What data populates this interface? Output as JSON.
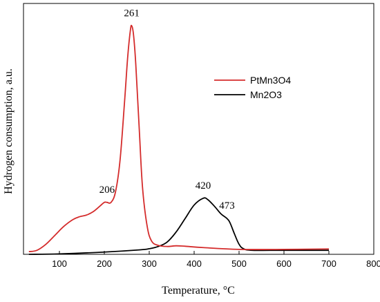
{
  "chart_data": {
    "type": "line",
    "title": "",
    "xlabel": "Temperature, °C",
    "ylabel": "Hydrogen consumption, a.u.",
    "xlim": [
      20,
      800
    ],
    "ylim": [
      0,
      1.12
    ],
    "x_ticks": [
      100,
      200,
      300,
      400,
      500,
      600,
      700,
      800
    ],
    "x_tick_labels": [
      "100",
      "200",
      "300",
      "400",
      "500",
      "600",
      "700",
      "800"
    ],
    "grid": false,
    "legend_position": "top-right",
    "series": [
      {
        "name": "PtMn3O4",
        "color": "#d42b2b",
        "x": [
          32,
          50,
          70,
          90,
          110,
          130,
          145,
          160,
          175,
          190,
          200,
          206,
          215,
          225,
          235,
          245,
          252,
          258,
          261,
          265,
          270,
          278,
          285,
          295,
          305,
          320,
          340,
          360,
          380,
          420,
          500,
          600,
          700
        ],
        "y": [
          0.012,
          0.018,
          0.045,
          0.085,
          0.125,
          0.155,
          0.168,
          0.175,
          0.19,
          0.215,
          0.232,
          0.232,
          0.232,
          0.28,
          0.42,
          0.68,
          0.88,
          1.0,
          1.02,
          0.98,
          0.85,
          0.55,
          0.3,
          0.13,
          0.06,
          0.04,
          0.035,
          0.038,
          0.036,
          0.03,
          0.022,
          0.022,
          0.024
        ]
      },
      {
        "name": "Mn2O3",
        "color": "#000000",
        "x": [
          32,
          100,
          200,
          280,
          300,
          320,
          340,
          360,
          380,
          400,
          420,
          430,
          445,
          460,
          473,
          480,
          490,
          500,
          510,
          530,
          600,
          700
        ],
        "y": [
          0.0,
          0.002,
          0.01,
          0.02,
          0.025,
          0.035,
          0.055,
          0.1,
          0.16,
          0.22,
          0.25,
          0.245,
          0.215,
          0.18,
          0.16,
          0.14,
          0.09,
          0.045,
          0.025,
          0.018,
          0.018,
          0.018
        ]
      }
    ],
    "annotations": [
      {
        "text": "261",
        "x": 261,
        "y": 1.02
      },
      {
        "text": "206",
        "x": 206,
        "y": 0.232
      },
      {
        "text": "420",
        "x": 420,
        "y": 0.25
      },
      {
        "text": "473",
        "x": 473,
        "y": 0.16
      }
    ]
  }
}
